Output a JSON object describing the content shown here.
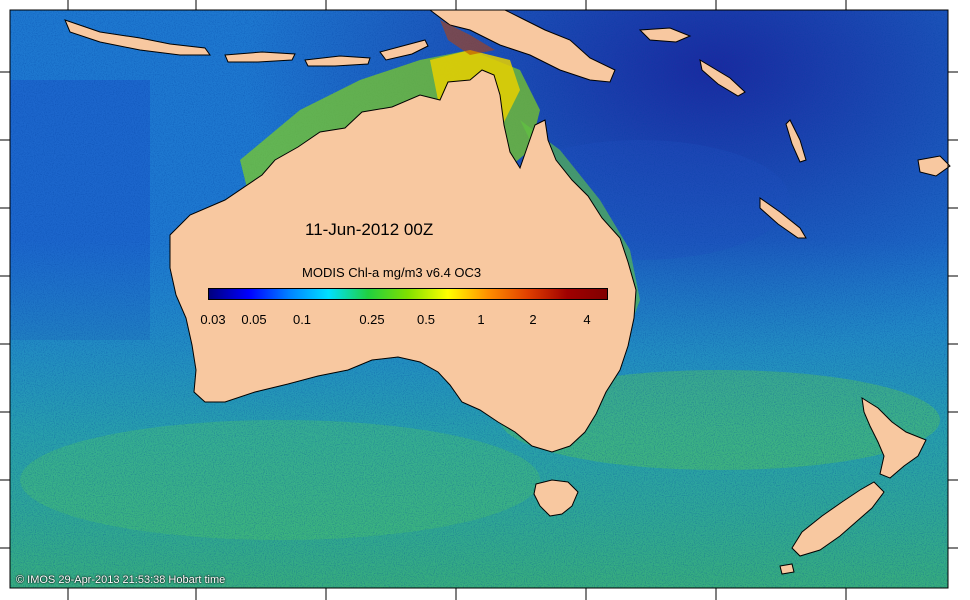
{
  "map": {
    "date_title": "11-Jun-2012 00Z",
    "colorbar_title": "MODIS Chl-a mg/m3 v6.4 OC3",
    "colorbar_ticks": [
      "0.03",
      "0.05",
      "0.1",
      "0.25",
      "0.5",
      "1",
      "2",
      "4"
    ],
    "colorbar_colors": [
      "#00007f",
      "#0000ff",
      "#0080ff",
      "#00e0ff",
      "#20d040",
      "#80e000",
      "#ffff00",
      "#ff9000",
      "#e04000",
      "#a00000",
      "#800000"
    ],
    "credit": "© IMOS 29-Apr-2013 21:53:38 Hobart time",
    "land_color": "#f8c8a0",
    "ocean_base_color": "#1e78d0"
  }
}
